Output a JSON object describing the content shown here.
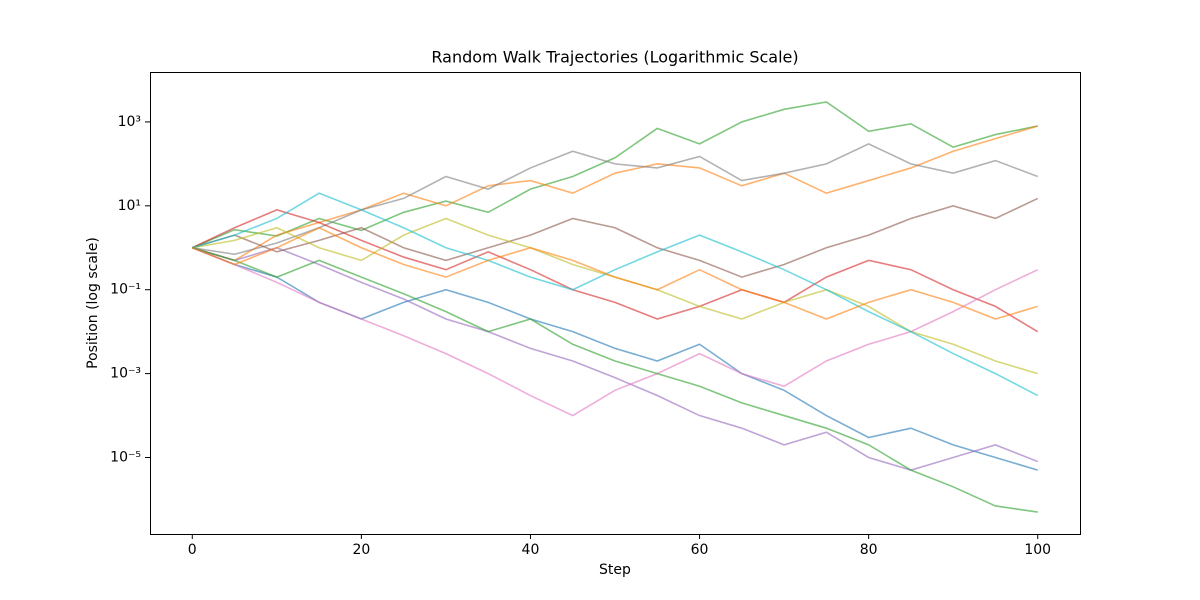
{
  "chart_data": {
    "type": "line",
    "title": "Random Walk Trajectories (Logarithmic Scale)",
    "x_label": "Step",
    "y_label": "Position (log scale)",
    "y_scale": "log",
    "grid": false,
    "xlim": [
      -5,
      105
    ],
    "xticks": [
      0,
      20,
      40,
      60,
      80,
      100
    ],
    "ylim": [
      1.5e-07,
      15500
    ],
    "yticks": [
      {
        "value": 1e-05,
        "label": "10⁻⁵"
      },
      {
        "value": 0.001,
        "label": "10⁻³"
      },
      {
        "value": 0.1,
        "label": "10⁻¹"
      },
      {
        "value": 10,
        "label": "10¹"
      },
      {
        "value": 1000,
        "label": "10³"
      }
    ],
    "x": [
      0,
      5,
      10,
      15,
      20,
      25,
      30,
      35,
      40,
      45,
      50,
      55,
      60,
      65,
      70,
      75,
      80,
      85,
      90,
      95,
      100
    ],
    "series": [
      {
        "color": "#2ca02c",
        "values": [
          1,
          2.7,
          1.9,
          5,
          2.6,
          7,
          13,
          7,
          25,
          50,
          140,
          700,
          300,
          1000,
          2000,
          3000,
          600,
          900,
          250,
          500,
          800
        ]
      },
      {
        "color": "#ff7f0e",
        "values": [
          1,
          0.5,
          2,
          4,
          8,
          20,
          10,
          30,
          40,
          20,
          60,
          100,
          80,
          30,
          60,
          20,
          40,
          80,
          200,
          400,
          800
        ]
      },
      {
        "color": "#7f7f7f",
        "values": [
          1,
          0.7,
          1.3,
          3,
          8,
          15,
          50,
          25,
          80,
          200,
          100,
          80,
          150,
          40,
          60,
          100,
          300,
          100,
          60,
          120,
          50
        ]
      },
      {
        "color": "#1f77b4",
        "values": [
          1,
          0.4,
          0.2,
          0.05,
          0.02,
          0.05,
          0.1,
          0.05,
          0.02,
          0.01,
          0.004,
          0.002,
          0.005,
          0.001,
          0.0004,
          0.0001,
          3e-05,
          5e-05,
          2e-05,
          1e-05,
          5e-06
        ]
      },
      {
        "color": "#d62728",
        "values": [
          1,
          3,
          8,
          4,
          1.5,
          0.6,
          0.3,
          0.8,
          0.3,
          0.1,
          0.05,
          0.02,
          0.04,
          0.1,
          0.05,
          0.2,
          0.5,
          0.3,
          0.1,
          0.04,
          0.01
        ]
      },
      {
        "color": "#9467bd",
        "values": [
          1,
          0.5,
          1,
          0.4,
          0.15,
          0.06,
          0.02,
          0.01,
          0.004,
          0.002,
          0.0008,
          0.0003,
          0.0001,
          5e-05,
          2e-05,
          4e-05,
          1e-05,
          5e-06,
          1e-05,
          2e-05,
          8e-06
        ]
      },
      {
        "color": "#8c564b",
        "values": [
          1,
          2,
          0.8,
          1.5,
          3,
          1,
          0.5,
          1,
          2,
          5,
          3,
          1,
          0.5,
          0.2,
          0.4,
          1,
          2,
          5,
          10,
          5,
          15
        ]
      },
      {
        "color": "#e377c2",
        "values": [
          1,
          0.4,
          0.15,
          0.05,
          0.02,
          0.008,
          0.003,
          0.001,
          0.0003,
          0.0001,
          0.0004,
          0.001,
          0.003,
          0.001,
          0.0005,
          0.002,
          0.005,
          0.01,
          0.03,
          0.1,
          0.3
        ]
      },
      {
        "color": "#bcbd22",
        "values": [
          1,
          1.5,
          3,
          1,
          0.5,
          2,
          5,
          2,
          1,
          0.4,
          0.2,
          0.1,
          0.04,
          0.02,
          0.05,
          0.1,
          0.04,
          0.01,
          0.005,
          0.002,
          0.001
        ]
      },
      {
        "color": "#17becf",
        "values": [
          1,
          2,
          5,
          20,
          8,
          3,
          1,
          0.5,
          0.2,
          0.1,
          0.3,
          0.8,
          2,
          0.8,
          0.3,
          0.1,
          0.03,
          0.01,
          0.003,
          0.001,
          0.0003
        ]
      },
      {
        "color": "#2ca02c",
        "values": [
          1,
          0.5,
          0.2,
          0.5,
          0.2,
          0.08,
          0.03,
          0.01,
          0.02,
          0.005,
          0.002,
          0.001,
          0.0005,
          0.0002,
          0.0001,
          5e-05,
          2e-05,
          5e-06,
          2e-06,
          7e-07,
          5e-07
        ]
      },
      {
        "color": "#ff7f0e",
        "values": [
          1,
          0.4,
          1,
          3,
          1,
          0.4,
          0.2,
          0.5,
          1,
          0.5,
          0.2,
          0.1,
          0.3,
          0.1,
          0.05,
          0.02,
          0.05,
          0.1,
          0.05,
          0.02,
          0.04
        ]
      }
    ]
  }
}
